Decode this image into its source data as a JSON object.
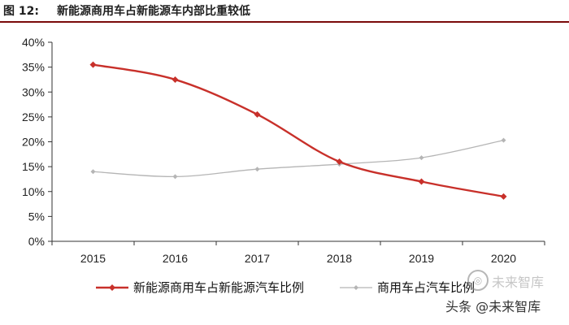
{
  "header": {
    "label": "图 12:",
    "title": "新能源商用车占新能源车内部比重较低"
  },
  "watermark": {
    "text": "头条 @未来智库",
    "faded_text": "未来智库"
  },
  "chart_data": {
    "type": "line",
    "title": "新能源商用车占新能源车内部比重较低",
    "x": [
      "2015",
      "2016",
      "2017",
      "2018",
      "2019",
      "2020"
    ],
    "ylim": [
      0,
      40
    ],
    "yticks": [
      "0%",
      "5%",
      "10%",
      "15%",
      "20%",
      "25%",
      "30%",
      "35%",
      "40%"
    ],
    "grid": false,
    "legend_position": "bottom",
    "series": [
      {
        "name": "新能源商用车占新能源汽车比例",
        "values": [
          35.5,
          32.5,
          25.5,
          16.0,
          12.0,
          9.0
        ],
        "color": "#c8302a",
        "marker": "diamond"
      },
      {
        "name": "商用车占汽车比例",
        "values": [
          14.0,
          13.0,
          14.5,
          15.5,
          16.8,
          20.3
        ],
        "color": "#b5b5b5",
        "marker": "diamond"
      }
    ]
  }
}
